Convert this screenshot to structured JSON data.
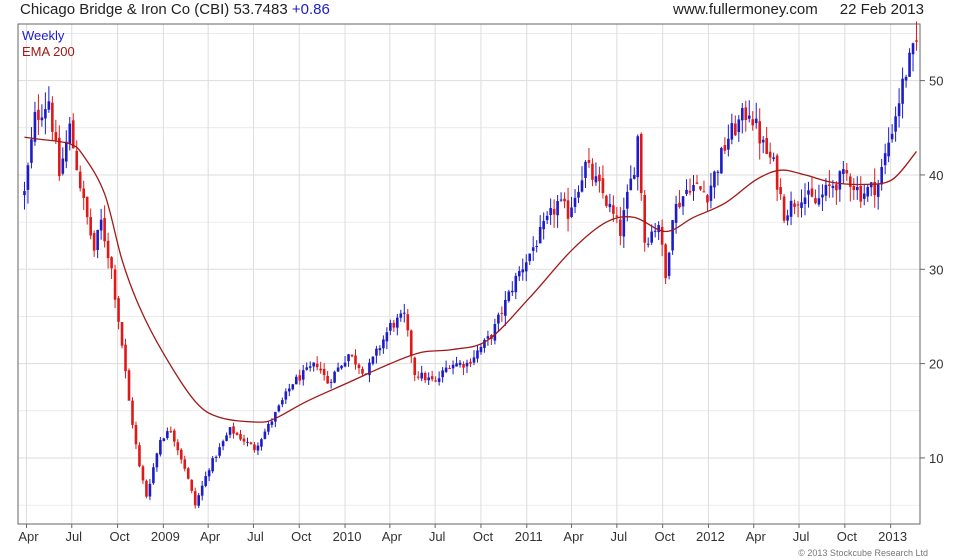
{
  "header": {
    "company": "Chicago Bridge & Iron Co (CBI)",
    "price": "53.7483",
    "change": "+0.86",
    "site": "www.fullermoney.com",
    "date": "22 Feb 2013"
  },
  "copyright": "© 2013 Stockcube Research Ltd",
  "chart_data": {
    "type": "candlestick",
    "title": "Chicago Bridge & Iron Co (CBI) 53.7483 +0.86",
    "frequency_label": "Weekly",
    "x_ticks": [
      "Apr",
      "Jul",
      "Oct",
      "2009",
      "Apr",
      "Jul",
      "Oct",
      "2010",
      "Apr",
      "Jul",
      "Oct",
      "2011",
      "Apr",
      "Jul",
      "Oct",
      "2012",
      "Apr",
      "Jul",
      "Oct",
      "2013"
    ],
    "y_ticks": [
      10,
      20,
      30,
      40,
      50
    ],
    "ylim": [
      3,
      56
    ],
    "y_axis_side": "right",
    "grid": true,
    "legend": "top-left",
    "colors": {
      "up": "#1c1cc8",
      "down": "#e01818",
      "ema": "#a01818",
      "grid": "#dddddd"
    },
    "series": [
      {
        "name": "Weekly",
        "close_anchors": [
          {
            "x": "2008-03-28",
            "close": 38
          },
          {
            "x": "2008-04-18",
            "close": 46
          },
          {
            "x": "2008-05-16",
            "close": 48
          },
          {
            "x": "2008-06-06",
            "close": 40
          },
          {
            "x": "2008-06-27",
            "close": 45
          },
          {
            "x": "2008-07-25",
            "close": 37
          },
          {
            "x": "2008-08-15",
            "close": 32
          },
          {
            "x": "2008-08-29",
            "close": 35
          },
          {
            "x": "2008-09-19",
            "close": 30
          },
          {
            "x": "2008-10-10",
            "close": 22
          },
          {
            "x": "2008-10-24",
            "close": 16
          },
          {
            "x": "2008-11-14",
            "close": 9
          },
          {
            "x": "2008-11-28",
            "close": 6
          },
          {
            "x": "2008-12-26",
            "close": 12
          },
          {
            "x": "2009-01-16",
            "close": 13
          },
          {
            "x": "2009-02-13",
            "close": 9
          },
          {
            "x": "2009-03-06",
            "close": 5
          },
          {
            "x": "2009-04-03",
            "close": 9
          },
          {
            "x": "2009-05-15",
            "close": 13
          },
          {
            "x": "2009-07-03",
            "close": 11
          },
          {
            "x": "2009-08-07",
            "close": 14
          },
          {
            "x": "2009-09-18",
            "close": 18
          },
          {
            "x": "2009-11-06",
            "close": 20
          },
          {
            "x": "2009-11-27",
            "close": 18
          },
          {
            "x": "2010-01-08",
            "close": 21
          },
          {
            "x": "2010-02-12",
            "close": 19
          },
          {
            "x": "2010-04-02",
            "close": 24
          },
          {
            "x": "2010-04-30",
            "close": 25
          },
          {
            "x": "2010-05-21",
            "close": 19
          },
          {
            "x": "2010-07-02",
            "close": 18
          },
          {
            "x": "2010-07-30",
            "close": 20
          },
          {
            "x": "2010-09-03",
            "close": 20
          },
          {
            "x": "2010-10-22",
            "close": 23
          },
          {
            "x": "2010-12-10",
            "close": 29
          },
          {
            "x": "2011-01-21",
            "close": 33
          },
          {
            "x": "2011-03-04",
            "close": 37
          },
          {
            "x": "2011-03-25",
            "close": 36
          },
          {
            "x": "2011-04-29",
            "close": 41
          },
          {
            "x": "2011-06-03",
            "close": 38
          },
          {
            "x": "2011-07-08",
            "close": 34
          },
          {
            "x": "2011-08-05",
            "close": 41
          },
          {
            "x": "2011-08-12",
            "close": 44
          },
          {
            "x": "2011-08-26",
            "close": 33
          },
          {
            "x": "2011-09-23",
            "close": 35
          },
          {
            "x": "2011-10-07",
            "close": 29
          },
          {
            "x": "2011-10-21",
            "close": 36
          },
          {
            "x": "2011-11-25",
            "close": 39
          },
          {
            "x": "2011-12-30",
            "close": 38
          },
          {
            "x": "2012-02-10",
            "close": 44
          },
          {
            "x": "2012-03-23",
            "close": 47
          },
          {
            "x": "2012-04-20",
            "close": 43
          },
          {
            "x": "2012-05-11",
            "close": 41
          },
          {
            "x": "2012-06-01",
            "close": 36
          },
          {
            "x": "2012-07-06",
            "close": 38
          },
          {
            "x": "2012-08-03",
            "close": 37
          },
          {
            "x": "2012-09-07",
            "close": 39
          },
          {
            "x": "2012-10-05",
            "close": 40
          },
          {
            "x": "2012-11-02",
            "close": 38
          },
          {
            "x": "2012-12-07",
            "close": 39
          },
          {
            "x": "2013-01-04",
            "close": 45
          },
          {
            "x": "2013-02-01",
            "close": 51
          },
          {
            "x": "2013-02-22",
            "close": 53.75
          }
        ]
      },
      {
        "name": "EMA 200",
        "points": [
          {
            "x": "2008-03-28",
            "y": 44
          },
          {
            "x": "2008-04-25",
            "y": 43.8
          },
          {
            "x": "2008-06-27",
            "y": 43.3
          },
          {
            "x": "2008-07-25",
            "y": 42
          },
          {
            "x": "2008-09-05",
            "y": 38
          },
          {
            "x": "2008-10-10",
            "y": 31
          },
          {
            "x": "2008-11-14",
            "y": 26
          },
          {
            "x": "2009-01-02",
            "y": 21
          },
          {
            "x": "2009-03-06",
            "y": 16
          },
          {
            "x": "2009-04-24",
            "y": 14.3
          },
          {
            "x": "2009-07-10",
            "y": 13.8
          },
          {
            "x": "2009-08-14",
            "y": 14.2
          },
          {
            "x": "2009-10-16",
            "y": 16
          },
          {
            "x": "2010-01-08",
            "y": 18
          },
          {
            "x": "2010-04-02",
            "y": 20
          },
          {
            "x": "2010-06-04",
            "y": 21.2
          },
          {
            "x": "2010-08-06",
            "y": 21.5
          },
          {
            "x": "2010-10-15",
            "y": 22.5
          },
          {
            "x": "2011-01-07",
            "y": 27
          },
          {
            "x": "2011-04-01",
            "y": 32
          },
          {
            "x": "2011-06-10",
            "y": 35
          },
          {
            "x": "2011-08-05",
            "y": 35.5
          },
          {
            "x": "2011-10-07",
            "y": 34
          },
          {
            "x": "2011-12-02",
            "y": 35.5
          },
          {
            "x": "2012-02-03",
            "y": 37
          },
          {
            "x": "2012-04-06",
            "y": 39.5
          },
          {
            "x": "2012-05-25",
            "y": 40.5
          },
          {
            "x": "2012-07-13",
            "y": 40
          },
          {
            "x": "2012-09-07",
            "y": 39.2
          },
          {
            "x": "2012-11-09",
            "y": 39
          },
          {
            "x": "2013-01-04",
            "y": 39.5
          },
          {
            "x": "2013-02-22",
            "y": 42.5
          }
        ]
      }
    ]
  }
}
